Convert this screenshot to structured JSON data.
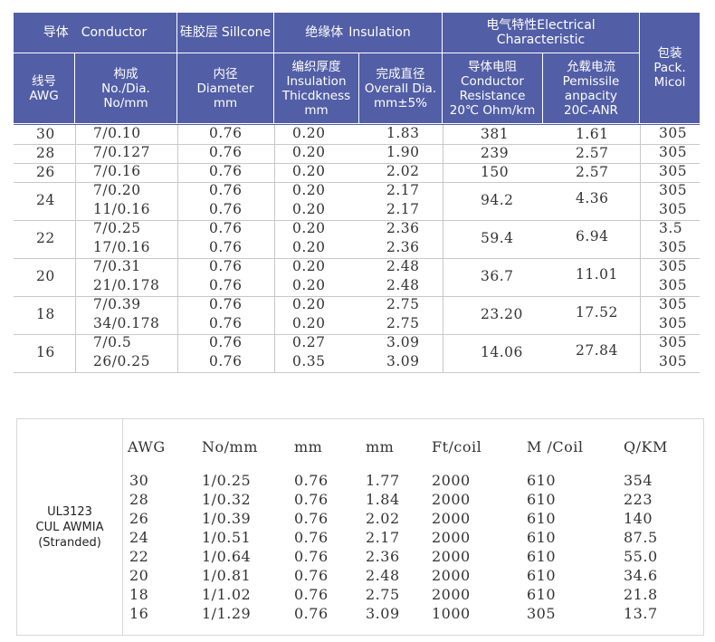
{
  "table1": {
    "header_row1": {
      "conductor": [
        "导体",
        "Conductor"
      ],
      "silicone": [
        "硅胶层",
        "Sillcone"
      ],
      "insulation": [
        "绝缘体",
        "Insulation"
      ],
      "electrical": [
        "电气特性Electrical Characteristic"
      ]
    },
    "header_row2": {
      "awg": [
        "线号",
        "AWG"
      ],
      "no_dia": [
        "构成",
        "No./Dia.",
        "No/mm"
      ],
      "diameter": [
        "内径",
        "Diameter",
        "mm"
      ],
      "thickness": [
        "编织厚度",
        "Insulation",
        "Thicdkness",
        "mm"
      ],
      "overall": [
        "完成直径",
        "Overall Dia.",
        "mm±5%"
      ],
      "resistance": [
        "导体电阻",
        "Conductor",
        "Resistance",
        "20℃ Ohm/km"
      ],
      "ampacity": [
        "允载电流",
        "Pemissile",
        "anpacity",
        "20C-ANR"
      ],
      "pack": [
        "包装",
        "Pack.",
        "Micol"
      ]
    },
    "rows": [
      {
        "awg": "30",
        "lines": [
          {
            "nd": "7/0.10",
            "dia": "0.76",
            "th": "0.20",
            "od": "1.83",
            "pk": "305"
          }
        ],
        "res": "381",
        "amp": "1.61"
      },
      {
        "awg": "28",
        "lines": [
          {
            "nd": "7/0.127",
            "dia": "0.76",
            "th": "0.20",
            "od": "1.90",
            "pk": "305"
          }
        ],
        "res": "239",
        "amp": "2.57"
      },
      {
        "awg": "26",
        "lines": [
          {
            "nd": "7/0.16",
            "dia": "0.76",
            "th": "0.20",
            "od": "2.02",
            "pk": "305"
          }
        ],
        "res": "150",
        "amp": "2.57"
      },
      {
        "awg": "24",
        "lines": [
          {
            "nd": "7/0.20",
            "dia": "0.76",
            "th": "0.20",
            "od": "2.17",
            "pk": "305"
          },
          {
            "nd": "11/0.16",
            "dia": "0.76",
            "th": "0.20",
            "od": "2.17",
            "pk": "305"
          }
        ],
        "res": "94.2",
        "amp": "4.36"
      },
      {
        "awg": "22",
        "lines": [
          {
            "nd": "7/0.25",
            "dia": "0.76",
            "th": "0.20",
            "od": "2.36",
            "pk": "3.5"
          },
          {
            "nd": "17/0.16",
            "dia": "0.76",
            "th": "0.20",
            "od": "2.36",
            "pk": "305"
          }
        ],
        "res": "59.4",
        "amp": "6.94"
      },
      {
        "awg": "20",
        "lines": [
          {
            "nd": "7/0.31",
            "dia": "0.76",
            "th": "0.20",
            "od": "2.48",
            "pk": "305"
          },
          {
            "nd": "21/0.178",
            "dia": "0.76",
            "th": "0.20",
            "od": "2.48",
            "pk": "305"
          }
        ],
        "res": "36.7",
        "amp": "11.01"
      },
      {
        "awg": "18",
        "lines": [
          {
            "nd": "7/0.39",
            "dia": "0.76",
            "th": "0.20",
            "od": "2.75",
            "pk": "305"
          },
          {
            "nd": "34/0.178",
            "dia": "0.76",
            "th": "0.20",
            "od": "2.75",
            "pk": "305"
          }
        ],
        "res": "23.20",
        "amp": "17.52"
      },
      {
        "awg": "16",
        "lines": [
          {
            "nd": "7/0.5",
            "dia": "0.76",
            "th": "0.27",
            "od": "3.09",
            "pk": "305"
          },
          {
            "nd": "26/0.25",
            "dia": "0.76",
            "th": "0.35",
            "od": "3.09",
            "pk": "305"
          }
        ],
        "res": "14.06",
        "amp": "27.84"
      }
    ]
  },
  "table2": {
    "side_label": [
      "UL3123",
      "CUL AWMIA",
      "(Stranded)"
    ],
    "headers": [
      "AWG",
      "No/mm",
      "mm",
      "mm",
      "Ft/coil",
      "M /Coil",
      "Q/KM"
    ],
    "rows": [
      [
        "30",
        "1/0.25",
        "0.76",
        "1.77",
        "2000",
        "610",
        "354"
      ],
      [
        "28",
        "1/0.32",
        "0.76",
        "1.84",
        "2000",
        "610",
        "223"
      ],
      [
        "26",
        "1/0.39",
        "0.76",
        "2.02",
        "2000",
        "610",
        "140"
      ],
      [
        "24",
        "1/0.51",
        "0.76",
        "2.17",
        "2000",
        "610",
        "87.5"
      ],
      [
        "22",
        "1/0.64",
        "0.76",
        "2.36",
        "2000",
        "610",
        "55.0"
      ],
      [
        "20",
        "1/0.81",
        "0.76",
        "2.48",
        "2000",
        "610",
        "34.6"
      ],
      [
        "18",
        "1/1.02",
        "0.76",
        "2.75",
        "2000",
        "610",
        "21.8"
      ],
      [
        "16",
        "1/1.29",
        "0.76",
        "3.09",
        "1000",
        "305",
        "13.7"
      ]
    ]
  }
}
